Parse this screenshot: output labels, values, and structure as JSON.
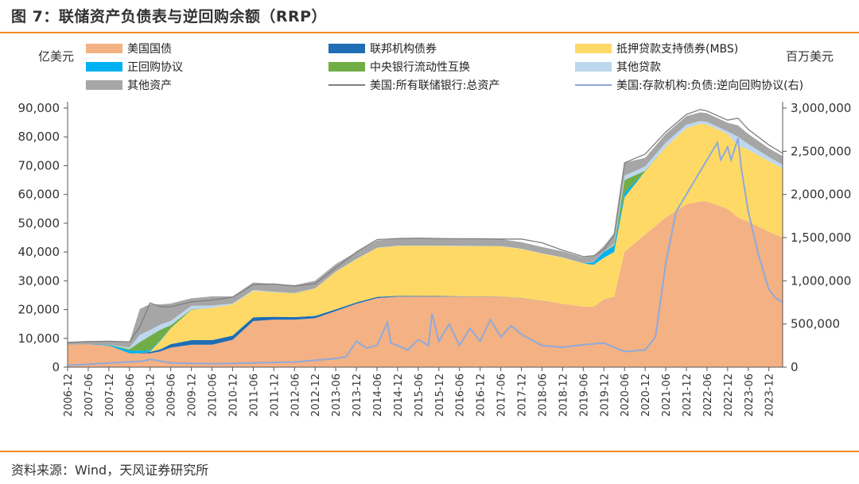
{
  "figure": {
    "title": "图 7：联储资产负债表与逆回购余额（RRP）",
    "source": "资料来源：Wind，天风证券研究所"
  },
  "colors": {
    "treasury": "#f4b183",
    "agency": "#1f6db5",
    "mbs": "#ffd966",
    "repo": "#00b0f0",
    "swaps": "#70ad47",
    "other_loans": "#bdd7ee",
    "other_assets": "#a6a6a6",
    "total_assets_line": "#7f7f7f",
    "rrp_line": "#8eaadb",
    "accent": "#f08a24"
  },
  "chart_data": {
    "type": "area",
    "stacked": true,
    "ylabel_left": "亿美元",
    "ylabel_right": "百万美元",
    "ylim_left": [
      0,
      90000
    ],
    "ylim_right": [
      0,
      3000000
    ],
    "yticks_left": [
      "0",
      "10,000",
      "20,000",
      "30,000",
      "40,000",
      "50,000",
      "60,000",
      "70,000",
      "80,000",
      "90,000"
    ],
    "yticks_right": [
      "0",
      "500,000",
      "1,000,000",
      "1,500,000",
      "2,000,000",
      "2,500,000",
      "3,000,000"
    ],
    "yticks_left_values": [
      0,
      10000,
      20000,
      30000,
      40000,
      50000,
      60000,
      70000,
      80000,
      90000
    ],
    "yticks_right_values": [
      0,
      500000,
      1000000,
      1500000,
      2000000,
      2500000,
      3000000
    ],
    "grid": false,
    "legend_position": "top",
    "x_range": [
      "2006-12",
      "2024-04"
    ],
    "xticks": [
      "2006-12",
      "2007-06",
      "2007-12",
      "2008-06",
      "2008-12",
      "2009-06",
      "2009-12",
      "2010-06",
      "2010-12",
      "2011-06",
      "2011-12",
      "2012-06",
      "2012-12",
      "2013-06",
      "2013-12",
      "2014-06",
      "2014-12",
      "2015-06",
      "2015-12",
      "2016-06",
      "2016-12",
      "2017-06",
      "2017-12",
      "2018-06",
      "2018-12",
      "2019-06",
      "2019-12",
      "2020-06",
      "2020-12",
      "2021-06",
      "2021-12",
      "2022-06",
      "2022-12",
      "2023-06",
      "2023-12"
    ],
    "x": [
      "2006-12",
      "2007-06",
      "2007-12",
      "2008-06",
      "2008-09",
      "2008-12",
      "2009-03",
      "2009-06",
      "2009-12",
      "2010-06",
      "2010-12",
      "2011-06",
      "2011-12",
      "2012-06",
      "2012-12",
      "2013-06",
      "2013-12",
      "2014-06",
      "2014-12",
      "2015-06",
      "2015-12",
      "2016-06",
      "2016-12",
      "2017-06",
      "2017-12",
      "2018-06",
      "2018-12",
      "2019-06",
      "2019-09",
      "2019-12",
      "2020-03",
      "2020-06",
      "2020-12",
      "2021-06",
      "2021-12",
      "2022-04",
      "2022-06",
      "2022-12",
      "2023-03",
      "2023-06",
      "2023-12",
      "2024-04"
    ],
    "series": [
      {
        "name": "美国国债",
        "axis": "left",
        "values": [
          7800,
          7900,
          7500,
          4800,
          4800,
          4800,
          5500,
          6800,
          7800,
          7800,
          9500,
          16000,
          16500,
          16500,
          17000,
          19500,
          22000,
          24000,
          24500,
          24500,
          24500,
          24500,
          24500,
          24500,
          24000,
          23000,
          22000,
          21000,
          21000,
          23500,
          24500,
          40000,
          46000,
          52000,
          56500,
          57500,
          57500,
          55000,
          52000,
          50500,
          47000,
          45000
        ]
      },
      {
        "name": "联邦机构债券",
        "axis": "left",
        "values": [
          0,
          0,
          0,
          0,
          100,
          500,
          700,
          1200,
          1600,
          1600,
          1500,
          1300,
          1000,
          900,
          800,
          600,
          500,
          400,
          300,
          250,
          200,
          150,
          100,
          50,
          50,
          50,
          30,
          20,
          20,
          20,
          20,
          20,
          20,
          20,
          20,
          20,
          20,
          20,
          20,
          20,
          20,
          20
        ]
      },
      {
        "name": "抵押贷款支持债券(MBS)",
        "axis": "left",
        "values": [
          0,
          0,
          0,
          0,
          0,
          100,
          3000,
          5500,
          10500,
          11200,
          10800,
          9200,
          8500,
          8200,
          9500,
          13000,
          15000,
          17000,
          17300,
          17400,
          17400,
          17400,
          17400,
          17400,
          17000,
          16400,
          16000,
          15000,
          14500,
          14500,
          15500,
          19000,
          22000,
          24500,
          26500,
          27000,
          26800,
          26000,
          25000,
          25000,
          24500,
          24000
        ]
      },
      {
        "name": "正回购协议",
        "axis": "left",
        "values": [
          0,
          0,
          300,
          1000,
          800,
          500,
          300,
          100,
          0,
          0,
          0,
          0,
          0,
          0,
          0,
          0,
          0,
          0,
          0,
          0,
          0,
          0,
          0,
          0,
          0,
          0,
          0,
          0,
          1000,
          2000,
          2000,
          1500,
          0,
          0,
          0,
          0,
          0,
          0,
          0,
          0,
          0,
          0
        ]
      },
      {
        "name": "中央银行流动性互换",
        "axis": "left",
        "values": [
          0,
          0,
          0,
          500,
          3000,
          5000,
          3500,
          1000,
          200,
          0,
          0,
          0,
          0,
          100,
          0,
          0,
          0,
          0,
          0,
          0,
          0,
          0,
          0,
          0,
          0,
          0,
          0,
          0,
          0,
          0,
          500,
          4500,
          200,
          0,
          0,
          0,
          0,
          0,
          0,
          0,
          0,
          0
        ]
      },
      {
        "name": "其他贷款",
        "axis": "left",
        "values": [
          0,
          0,
          0,
          500,
          2500,
          2000,
          1800,
          1500,
          1200,
          800,
          300,
          300,
          200,
          100,
          100,
          100,
          100,
          100,
          100,
          100,
          100,
          100,
          100,
          100,
          100,
          100,
          100,
          100,
          100,
          100,
          500,
          1500,
          1500,
          1500,
          1200,
          1000,
          900,
          900,
          3000,
          2000,
          1500,
          1300
        ]
      },
      {
        "name": "其他资产",
        "axis": "left",
        "values": [
          800,
          1000,
          1200,
          2000,
          9000,
          9000,
          7000,
          6000,
          2600,
          3200,
          2500,
          2600,
          2700,
          2700,
          2600,
          2600,
          2400,
          2500,
          2400,
          2300,
          2400,
          2300,
          2400,
          2400,
          2300,
          2200,
          2100,
          2000,
          2000,
          2000,
          3500,
          4500,
          3000,
          3000,
          3000,
          3000,
          3000,
          3000,
          4000,
          3500,
          3000,
          3000
        ]
      }
    ],
    "lines": [
      {
        "name": "美国:所有联储银行:总资产",
        "axis": "left",
        "x": [
          "2006-12",
          "2007-06",
          "2007-12",
          "2008-06",
          "2008-09",
          "2008-12",
          "2009-03",
          "2009-06",
          "2009-12",
          "2010-06",
          "2010-12",
          "2011-06",
          "2011-12",
          "2012-06",
          "2012-12",
          "2013-06",
          "2013-12",
          "2014-06",
          "2014-12",
          "2015-06",
          "2015-12",
          "2016-06",
          "2016-12",
          "2017-06",
          "2017-12",
          "2018-06",
          "2018-12",
          "2019-06",
          "2019-09",
          "2019-12",
          "2020-03",
          "2020-06",
          "2020-12",
          "2021-06",
          "2021-12",
          "2022-04",
          "2022-06",
          "2022-12",
          "2023-03",
          "2023-06",
          "2023-12",
          "2024-04"
        ],
        "values": [
          8600,
          8900,
          9000,
          8800,
          14000,
          22300,
          21000,
          21000,
          22700,
          23300,
          24300,
          28700,
          28900,
          28200,
          29000,
          34500,
          40000,
          44300,
          44700,
          44800,
          44700,
          44600,
          44600,
          44500,
          44500,
          43200,
          40600,
          38400,
          38700,
          40900,
          46000,
          71000,
          74000,
          81700,
          87800,
          89500,
          89000,
          85800,
          86500,
          82600,
          77200,
          74300
        ]
      },
      {
        "name": "美国:存款机构:负债:逆向回购协议(右)",
        "axis": "right",
        "x": [
          "2006-12",
          "2008-10",
          "2008-12",
          "2009-06",
          "2010-06",
          "2011-06",
          "2012-06",
          "2013-06",
          "2013-09",
          "2013-12",
          "2014-03",
          "2014-06",
          "2014-09",
          "2014-10",
          "2014-12",
          "2015-03",
          "2015-06",
          "2015-09",
          "2015-10",
          "2015-12",
          "2016-03",
          "2016-06",
          "2016-09",
          "2016-12",
          "2017-03",
          "2017-06",
          "2017-09",
          "2017-12",
          "2018-06",
          "2018-12",
          "2019-06",
          "2019-12",
          "2020-03",
          "2020-06",
          "2020-12",
          "2021-03",
          "2021-06",
          "2021-09",
          "2021-12",
          "2022-03",
          "2022-06",
          "2022-09",
          "2022-10",
          "2022-12",
          "2023-01",
          "2023-03",
          "2023-04",
          "2023-06",
          "2023-09",
          "2023-12",
          "2024-02",
          "2024-04"
        ],
        "values": [
          20000,
          70000,
          90000,
          50000,
          40000,
          50000,
          60000,
          100000,
          120000,
          300000,
          220000,
          250000,
          520000,
          280000,
          250000,
          200000,
          320000,
          250000,
          620000,
          300000,
          500000,
          250000,
          450000,
          300000,
          550000,
          350000,
          480000,
          380000,
          250000,
          230000,
          260000,
          280000,
          230000,
          180000,
          200000,
          350000,
          1200000,
          1800000,
          2000000,
          2200000,
          2400000,
          2600000,
          2400000,
          2550000,
          2400000,
          2650000,
          2300000,
          1800000,
          1300000,
          900000,
          800000,
          750000
        ]
      }
    ]
  }
}
